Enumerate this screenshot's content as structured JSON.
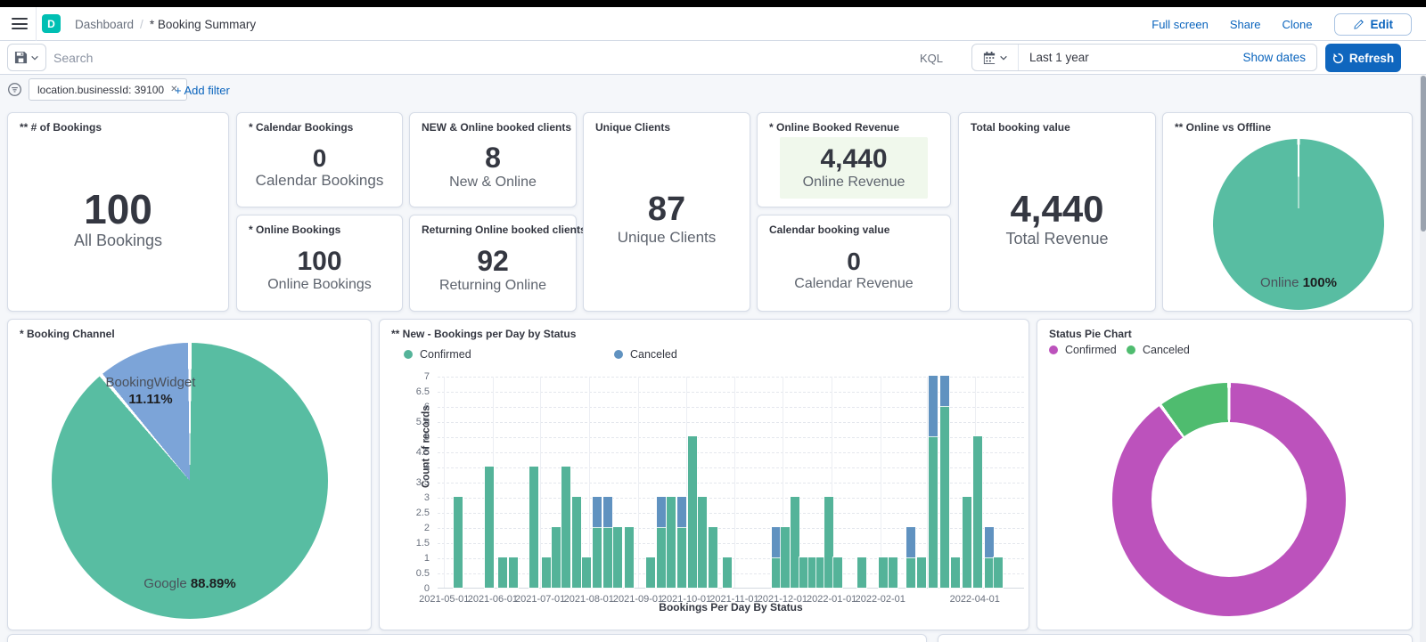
{
  "chrome": {
    "app_letter": "D",
    "breadcrumb": {
      "section": "Dashboard",
      "separator": "/",
      "page": "* Booking Summary"
    },
    "actions": {
      "full_screen": "Full screen",
      "share": "Share",
      "clone": "Clone",
      "edit": "Edit"
    }
  },
  "query_bar": {
    "search_placeholder": "Search",
    "kql": "KQL",
    "time_value": "Last 1 year",
    "show_dates": "Show dates",
    "refresh": "Refresh"
  },
  "filter_bar": {
    "pill_text": "location.businessId: 39100",
    "pill_close": "✕",
    "add_filter": "+ Add filter"
  },
  "metrics": {
    "all_bookings": {
      "title": "** # of Bookings",
      "value": "100",
      "label": "All Bookings"
    },
    "calendar_bookings": {
      "title": "* Calendar Bookings",
      "value": "0",
      "label": "Calendar Bookings"
    },
    "online_bookings": {
      "title": "* Online Bookings",
      "value": "100",
      "label": "Online Bookings"
    },
    "new_online": {
      "title": "NEW & Online booked clients",
      "value": "8",
      "label": "New & Online"
    },
    "returning_online": {
      "title": "Returning Online booked clients",
      "value": "92",
      "label": "Returning Online"
    },
    "unique_clients": {
      "title": "Unique Clients",
      "value": "87",
      "label": "Unique Clients"
    },
    "online_revenue": {
      "title": "* Online Booked Revenue",
      "value": "4,440",
      "label": "Online Revenue"
    },
    "calendar_revenue": {
      "title": "Calendar booking value",
      "value": "0",
      "label": "Calendar Revenue"
    },
    "total_revenue": {
      "title": "Total booking value",
      "value": "4,440",
      "label": "Total Revenue"
    }
  },
  "colors": {
    "bar_confirmed": "#54b399",
    "bar_canceled": "#6092c0",
    "pie_teal": "#58bda2",
    "pie_blue": "#7ca4d8",
    "donut_confirmed": "#bc52bc",
    "donut_canceled": "#4fbc6f",
    "link_blue": "#0a64bd",
    "refresh_blue": "#0f66be"
  },
  "chart_data": [
    {
      "id": "online_vs_offline",
      "type": "pie",
      "title": "** Online vs Offline",
      "slices": [
        {
          "label": "Online",
          "pct": 100,
          "color": "#58bda2"
        }
      ],
      "labels": {
        "name": "Online",
        "pct": "100%"
      }
    },
    {
      "id": "booking_channel",
      "type": "pie",
      "title": "* Booking Channel",
      "slices": [
        {
          "label": "Google",
          "pct": 88.89,
          "color": "#58bda2"
        },
        {
          "label": "BookingWidget",
          "pct": 11.11,
          "color": "#7ca4d8"
        }
      ],
      "labels": {
        "widget_name": "BookingWidget",
        "widget_pct": "11.11%",
        "google_name": "Google",
        "google_pct": "88.89%"
      }
    },
    {
      "id": "bookings_per_day",
      "type": "bar",
      "title": "** New - Bookings per Day by Status",
      "legend": [
        {
          "label": "Confirmed",
          "color": "#54b399"
        },
        {
          "label": "Canceled",
          "color": "#6092c0"
        }
      ],
      "ylabel": "Count of records",
      "xlabel": "Bookings Per Day By Status",
      "ylim": [
        0,
        7
      ],
      "ytick_step": 0.5,
      "grid": true,
      "xticks": [
        {
          "p": 1.1,
          "label": "2021-05-01"
        },
        {
          "p": 9.4,
          "label": "2021-06-01"
        },
        {
          "p": 17.5,
          "label": "2021-07-01"
        },
        {
          "p": 25.8,
          "label": "2021-08-01"
        },
        {
          "p": 34.2,
          "label": "2021-09-01"
        },
        {
          "p": 42.4,
          "label": "2021-10-01"
        },
        {
          "p": 50.6,
          "label": "2021-11-01"
        },
        {
          "p": 58.8,
          "label": "2021-12-01"
        },
        {
          "p": 67.2,
          "label": "2022-01-01"
        },
        {
          "p": 75.5,
          "label": "2022-02-01"
        },
        {
          "p": 83.4,
          "label": ""
        },
        {
          "p": 91.6,
          "label": "2022-04-01"
        }
      ],
      "bars": [
        {
          "x": 3.5,
          "c": 3,
          "k": 0
        },
        {
          "x": 8.8,
          "c": 4,
          "k": 0
        },
        {
          "x": 11.1,
          "c": 1,
          "k": 0
        },
        {
          "x": 12.9,
          "c": 1,
          "k": 0
        },
        {
          "x": 16.4,
          "c": 4,
          "k": 0
        },
        {
          "x": 18.5,
          "c": 1,
          "k": 0
        },
        {
          "x": 20.2,
          "c": 2,
          "k": 0
        },
        {
          "x": 21.9,
          "c": 4,
          "k": 0
        },
        {
          "x": 23.7,
          "c": 3,
          "k": 0
        },
        {
          "x": 25.4,
          "c": 1,
          "k": 0
        },
        {
          "x": 27.2,
          "c": 2,
          "k": 1
        },
        {
          "x": 29.0,
          "c": 2,
          "k": 1
        },
        {
          "x": 30.7,
          "c": 2,
          "k": 0
        },
        {
          "x": 32.7,
          "c": 2,
          "k": 0
        },
        {
          "x": 36.3,
          "c": 1,
          "k": 0
        },
        {
          "x": 38.1,
          "c": 2,
          "k": 1
        },
        {
          "x": 39.8,
          "c": 3,
          "k": 0
        },
        {
          "x": 41.6,
          "c": 2,
          "k": 1
        },
        {
          "x": 43.5,
          "c": 5,
          "k": 0
        },
        {
          "x": 45.1,
          "c": 3,
          "k": 0
        },
        {
          "x": 47.0,
          "c": 2,
          "k": 0
        },
        {
          "x": 49.4,
          "c": 1,
          "k": 0
        },
        {
          "x": 57.8,
          "c": 1,
          "k": 1
        },
        {
          "x": 59.3,
          "c": 2,
          "k": 0
        },
        {
          "x": 60.9,
          "c": 3,
          "k": 0
        },
        {
          "x": 62.5,
          "c": 1,
          "k": 0
        },
        {
          "x": 64.0,
          "c": 1,
          "k": 0
        },
        {
          "x": 65.3,
          "c": 1,
          "k": 0
        },
        {
          "x": 66.7,
          "c": 3,
          "k": 0
        },
        {
          "x": 68.2,
          "c": 1,
          "k": 0
        },
        {
          "x": 72.3,
          "c": 1,
          "k": 0
        },
        {
          "x": 76.0,
          "c": 1,
          "k": 0
        },
        {
          "x": 77.7,
          "c": 1,
          "k": 0
        },
        {
          "x": 80.7,
          "c": 1,
          "k": 1
        },
        {
          "x": 82.5,
          "c": 1,
          "k": 0
        },
        {
          "x": 84.5,
          "c": 5,
          "k": 2
        },
        {
          "x": 86.5,
          "c": 6,
          "k": 1
        },
        {
          "x": 88.3,
          "c": 1,
          "k": 0
        },
        {
          "x": 90.3,
          "c": 3,
          "k": 0
        },
        {
          "x": 92.1,
          "c": 5,
          "k": 0
        },
        {
          "x": 94.1,
          "c": 1,
          "k": 1
        },
        {
          "x": 95.6,
          "c": 1,
          "k": 0
        }
      ]
    },
    {
      "id": "status_pie",
      "type": "donut",
      "title": "Status Pie Chart",
      "legend": [
        {
          "label": "Confirmed",
          "color": "#bc52bc"
        },
        {
          "label": "Canceled",
          "color": "#4fbc6f"
        }
      ],
      "slices": [
        {
          "label": "Confirmed",
          "pct": 90,
          "color": "#bc52bc"
        },
        {
          "label": "Canceled",
          "pct": 10,
          "color": "#4fbc6f"
        }
      ]
    }
  ]
}
